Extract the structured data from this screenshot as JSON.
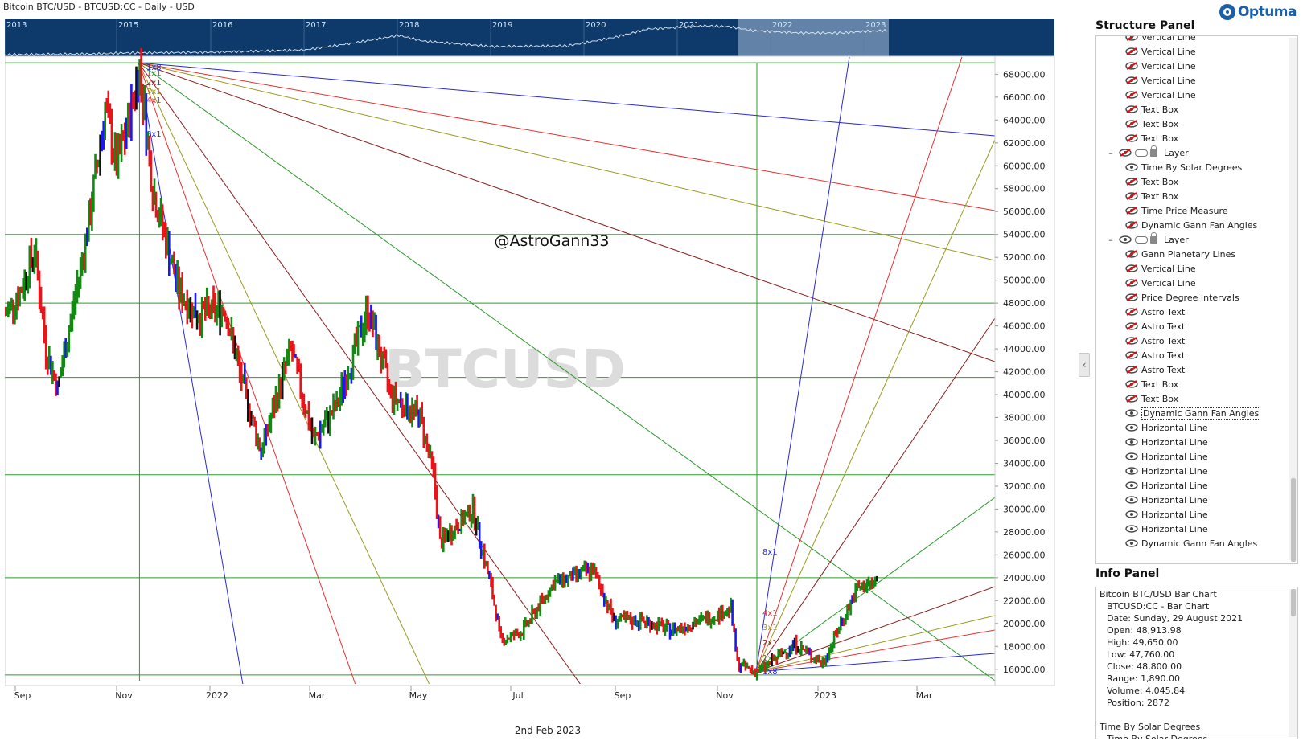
{
  "window": {
    "title": "Bitcoin BTC/USD - BTCUSD:CC - Daily - USD",
    "logo_text": "Optuma"
  },
  "overview": {
    "year_labels": [
      "2013",
      "2015",
      "2016",
      "2017",
      "2018",
      "2019",
      "2020",
      "2021",
      "2022",
      "2023"
    ],
    "background_color": "#0e3a6b",
    "highlight_color": "#7f9bbb"
  },
  "chart": {
    "watermark": "BTCUSD",
    "handle": "@AstroGann33",
    "footer_date": "2nd Feb 2023",
    "x_axis_labels": [
      "Sep",
      "Nov",
      "2022",
      "Mar",
      "May",
      "Jul",
      "Sep",
      "Nov",
      "2023",
      "Mar"
    ],
    "price_labels": [
      "68000.00",
      "66000.00",
      "64000.00",
      "62000.00",
      "60000.00",
      "58000.00",
      "56000.00",
      "54000.00",
      "52000.00",
      "50000.00",
      "48000.00",
      "46000.00",
      "44000.00",
      "42000.00",
      "40000.00",
      "38000.00",
      "36000.00",
      "34000.00",
      "32000.00",
      "30000.00",
      "28000.00",
      "26000.00",
      "24000.00",
      "22000.00",
      "20000.00",
      "18000.00",
      "16000.00"
    ],
    "fan_top_labels": [
      "1x8",
      "1x1",
      "2x1",
      "3x1",
      "4x1",
      "8x1"
    ],
    "fan_bottom_labels": [
      "8x1",
      "4x1",
      "3x1",
      "2x1",
      "1x1",
      "1x8"
    ],
    "colors": {
      "up_bar": "#138a13",
      "down_bar": "#e8141a",
      "neutral_bar": "#1a1aee",
      "outside_bar": "#111111",
      "grid_line": "#2e9a2e",
      "fan_blue": "#2a2ad4",
      "fan_red": "#e53030",
      "fan_olive": "#9a9a20",
      "fan_maroon": "#8a1c1c",
      "fan_green": "#2a9a2a"
    }
  },
  "chart_data": {
    "type": "bar",
    "title": "Bitcoin BTC/USD - BTCUSD:CC - Daily - USD",
    "x_range": [
      "2021-08-20",
      "2023-04-15"
    ],
    "ylim": [
      15000,
      69500
    ],
    "horizontal_levels": [
      69000,
      54000,
      48000,
      41500,
      33000,
      24000,
      15500
    ],
    "vertical_markers": [
      "2021-11-10",
      "2022-11-21"
    ],
    "price_path": [
      [
        "2021-08-20",
        47000
      ],
      [
        "2021-08-29",
        48900
      ],
      [
        "2021-09-07",
        52700
      ],
      [
        "2021-09-14",
        44000
      ],
      [
        "2021-09-21",
        40500
      ],
      [
        "2021-10-01",
        48000
      ],
      [
        "2021-10-10",
        55000
      ],
      [
        "2021-10-20",
        65000
      ],
      [
        "2021-10-27",
        60000
      ],
      [
        "2021-11-02",
        63000
      ],
      [
        "2021-11-10",
        68700
      ],
      [
        "2021-11-18",
        58000
      ],
      [
        "2021-12-04",
        49000
      ],
      [
        "2021-12-15",
        47000
      ],
      [
        "2022-01-01",
        47500
      ],
      [
        "2022-01-10",
        41800
      ],
      [
        "2022-01-23",
        35000
      ],
      [
        "2022-02-10",
        44000
      ],
      [
        "2022-02-24",
        36000
      ],
      [
        "2022-03-10",
        39000
      ],
      [
        "2022-03-29",
        47500
      ],
      [
        "2022-04-12",
        40000
      ],
      [
        "2022-04-30",
        38000
      ],
      [
        "2022-05-08",
        33000
      ],
      [
        "2022-05-12",
        27000
      ],
      [
        "2022-06-01",
        30000
      ],
      [
        "2022-06-13",
        22500
      ],
      [
        "2022-06-18",
        18500
      ],
      [
        "2022-07-01",
        19300
      ],
      [
        "2022-07-20",
        23500
      ],
      [
        "2022-08-13",
        24700
      ],
      [
        "2022-08-26",
        20300
      ],
      [
        "2022-09-13",
        20200
      ],
      [
        "2022-09-30",
        19400
      ],
      [
        "2022-10-25",
        20600
      ],
      [
        "2022-11-05",
        21300
      ],
      [
        "2022-11-09",
        16500
      ],
      [
        "2022-11-21",
        15700
      ],
      [
        "2022-12-14",
        18200
      ],
      [
        "2022-12-31",
        16500
      ],
      [
        "2023-01-14",
        20900
      ],
      [
        "2023-01-21",
        23000
      ],
      [
        "2023-02-02",
        23700
      ]
    ]
  },
  "structure_panel": {
    "title": "Structure Panel",
    "items": [
      {
        "label": "Vertical Line",
        "level": 2,
        "hidden": true
      },
      {
        "label": "Vertical Line",
        "level": 2,
        "hidden": true
      },
      {
        "label": "Vertical Line",
        "level": 2,
        "hidden": true
      },
      {
        "label": "Vertical Line",
        "level": 2,
        "hidden": true
      },
      {
        "label": "Vertical Line",
        "level": 2,
        "hidden": true
      },
      {
        "label": "Text Box",
        "level": 2,
        "hidden": true
      },
      {
        "label": "Text Box",
        "level": 2,
        "hidden": true
      },
      {
        "label": "Text Box",
        "level": 2,
        "hidden": true
      },
      {
        "label": "Layer",
        "level": 1,
        "hidden": true
      },
      {
        "label": "Time By Solar Degrees",
        "level": 2,
        "hidden": false
      },
      {
        "label": "Text Box",
        "level": 2,
        "hidden": true
      },
      {
        "label": "Text Box",
        "level": 2,
        "hidden": true
      },
      {
        "label": "Time Price Measure",
        "level": 2,
        "hidden": true
      },
      {
        "label": "Dynamic Gann Fan Angles",
        "level": 2,
        "hidden": true
      },
      {
        "label": "Layer",
        "level": 1,
        "hidden": false
      },
      {
        "label": "Gann Planetary Lines",
        "level": 2,
        "hidden": true
      },
      {
        "label": "Vertical Line",
        "level": 2,
        "hidden": true
      },
      {
        "label": "Vertical Line",
        "level": 2,
        "hidden": true
      },
      {
        "label": "Price Degree Intervals",
        "level": 2,
        "hidden": true
      },
      {
        "label": "Astro Text",
        "level": 2,
        "hidden": true
      },
      {
        "label": "Astro Text",
        "level": 2,
        "hidden": true
      },
      {
        "label": "Astro Text",
        "level": 2,
        "hidden": true
      },
      {
        "label": "Astro Text",
        "level": 2,
        "hidden": true
      },
      {
        "label": "Astro Text",
        "level": 2,
        "hidden": true
      },
      {
        "label": "Text Box",
        "level": 2,
        "hidden": true
      },
      {
        "label": "Text Box",
        "level": 2,
        "hidden": true
      },
      {
        "label": "Dynamic Gann Fan Angles",
        "level": 2,
        "hidden": false,
        "selected": true
      },
      {
        "label": "Horizontal Line",
        "level": 2,
        "hidden": false
      },
      {
        "label": "Horizontal Line",
        "level": 2,
        "hidden": false
      },
      {
        "label": "Horizontal Line",
        "level": 2,
        "hidden": false
      },
      {
        "label": "Horizontal Line",
        "level": 2,
        "hidden": false
      },
      {
        "label": "Horizontal Line",
        "level": 2,
        "hidden": false
      },
      {
        "label": "Horizontal Line",
        "level": 2,
        "hidden": false
      },
      {
        "label": "Horizontal Line",
        "level": 2,
        "hidden": false
      },
      {
        "label": "Horizontal Line",
        "level": 2,
        "hidden": false
      },
      {
        "label": "Dynamic Gann Fan Angles",
        "level": 2,
        "hidden": false
      }
    ]
  },
  "info_panel": {
    "title": "Info Panel",
    "lines": [
      {
        "text": "Bitcoin BTC/USD Bar Chart",
        "indent": false
      },
      {
        "text": "BTCUSD:CC - Bar Chart",
        "indent": true
      },
      {
        "text": "Date: Sunday, 29 August 2021",
        "indent": true
      },
      {
        "text": "Open: 48,913.98",
        "indent": true
      },
      {
        "text": "High: 49,650.00",
        "indent": true
      },
      {
        "text": "Low: 47,760.00",
        "indent": true
      },
      {
        "text": "Close: 48,800.00",
        "indent": true
      },
      {
        "text": "Range: 1,890.00",
        "indent": true
      },
      {
        "text": "Volume: 4,045.84",
        "indent": true
      },
      {
        "text": "Position: 2872",
        "indent": true
      },
      {
        "text": "",
        "indent": false
      },
      {
        "text": "Time By Solar Degrees",
        "indent": false
      },
      {
        "text": "Time By Solar Degrees",
        "indent": true
      }
    ]
  },
  "collapse_icon": "chevron-left-icon"
}
